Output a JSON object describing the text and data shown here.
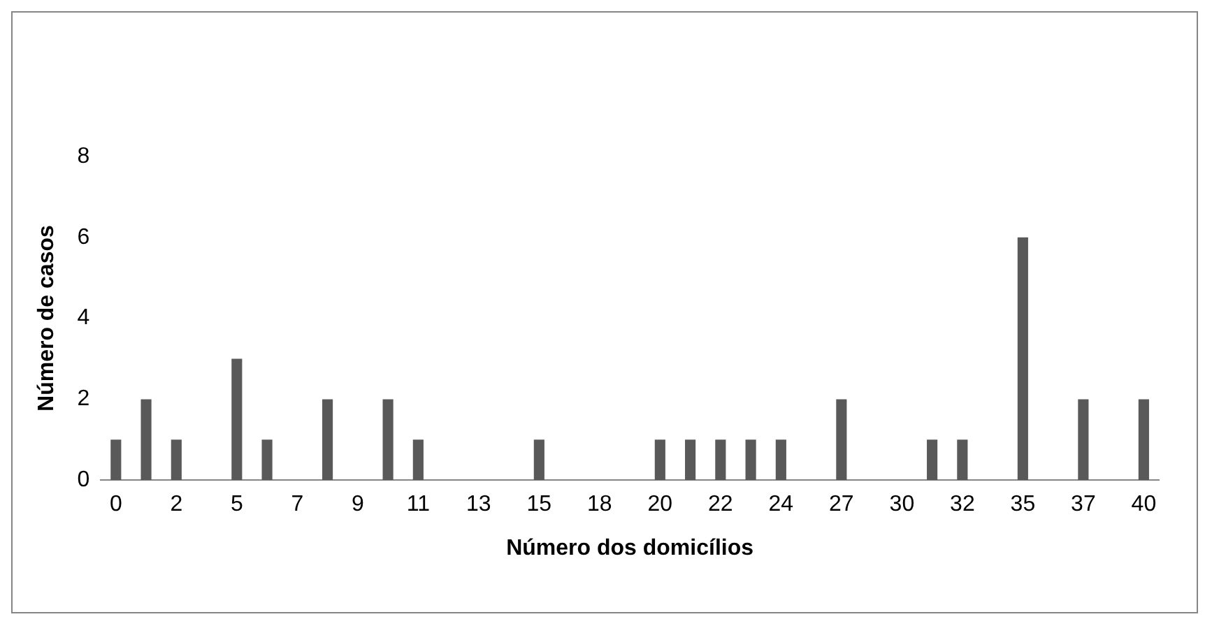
{
  "chart_data": {
    "type": "bar",
    "xlabel": "Número dos domicílios",
    "ylabel": "Número de casos",
    "categories": [
      "0",
      null,
      "2",
      null,
      "5",
      null,
      "7",
      null,
      "9",
      null,
      "11",
      null,
      "13",
      null,
      "15",
      null,
      "18",
      null,
      "20",
      null,
      "22",
      null,
      "24",
      null,
      "27",
      null,
      "30",
      null,
      "32",
      null,
      "35",
      null,
      "37",
      null,
      "40"
    ],
    "values": [
      1,
      2,
      1,
      0,
      3,
      1,
      0,
      2,
      0,
      2,
      1,
      0,
      0,
      0,
      1,
      0,
      0,
      0,
      1,
      1,
      1,
      1,
      1,
      0,
      2,
      0,
      0,
      1,
      1,
      0,
      6,
      0,
      2,
      0,
      2
    ],
    "color": "#595959",
    "ylim": [
      0,
      8
    ],
    "yticks": [
      0,
      2,
      4,
      6,
      8
    ],
    "grid": false,
    "legend": false
  }
}
